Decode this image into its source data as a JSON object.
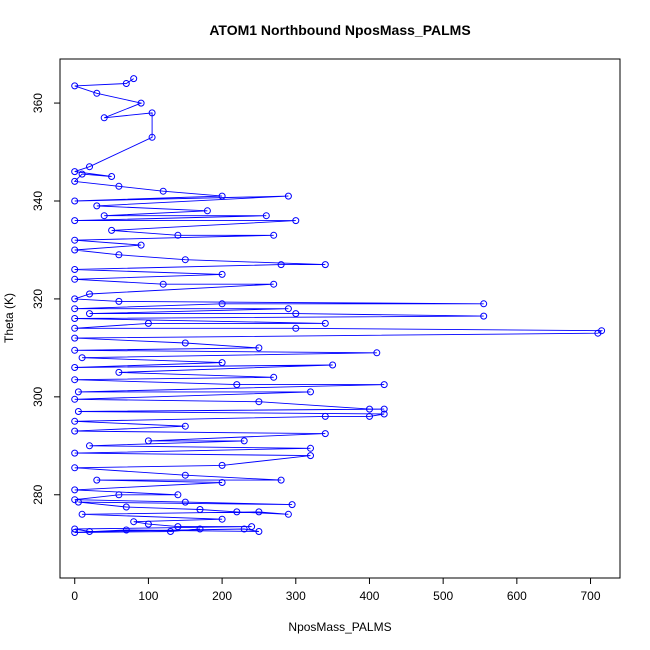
{
  "chart_data": {
    "type": "line",
    "title": "ATOM1 Northbound NposMass_PALMS",
    "xlabel": "NposMass_PALMS",
    "ylabel": "Theta (K)",
    "xlim": [
      -20,
      740
    ],
    "ylim": [
      263,
      369
    ],
    "xticks": [
      0,
      100,
      200,
      300,
      400,
      500,
      600,
      700
    ],
    "yticks": [
      280,
      300,
      320,
      340,
      360
    ],
    "grid": false,
    "legend": "none",
    "marker": "open-circle",
    "color": "#0000ff",
    "series": [
      {
        "values": [
          [
            80,
            365
          ],
          [
            70,
            364
          ],
          [
            0,
            363.5
          ],
          [
            30,
            362
          ],
          [
            90,
            360
          ],
          [
            40,
            357
          ],
          [
            105,
            358
          ],
          [
            105,
            353
          ],
          [
            20,
            347
          ],
          [
            0,
            346
          ],
          [
            50,
            345
          ],
          [
            10,
            345.5
          ],
          [
            0,
            344
          ],
          [
            60,
            343
          ],
          [
            120,
            342
          ],
          [
            200,
            341
          ],
          [
            0,
            340
          ],
          [
            290,
            341
          ],
          [
            30,
            339
          ],
          [
            180,
            338
          ],
          [
            40,
            337
          ],
          [
            260,
            337
          ],
          [
            0,
            336
          ],
          [
            300,
            336
          ],
          [
            50,
            334
          ],
          [
            140,
            333
          ],
          [
            270,
            333
          ],
          [
            0,
            332
          ],
          [
            90,
            331
          ],
          [
            0,
            330
          ],
          [
            60,
            329
          ],
          [
            150,
            328
          ],
          [
            340,
            327
          ],
          [
            280,
            327
          ],
          [
            0,
            326
          ],
          [
            200,
            325
          ],
          [
            0,
            324
          ],
          [
            120,
            323
          ],
          [
            270,
            323
          ],
          [
            20,
            321
          ],
          [
            0,
            320
          ],
          [
            60,
            319.5
          ],
          [
            555,
            319
          ],
          [
            200,
            319
          ],
          [
            0,
            318
          ],
          [
            290,
            318
          ],
          [
            20,
            317
          ],
          [
            300,
            317
          ],
          [
            555,
            316.5
          ],
          [
            0,
            316
          ],
          [
            340,
            315
          ],
          [
            100,
            315
          ],
          [
            0,
            314
          ],
          [
            300,
            314
          ],
          [
            715,
            313.5
          ],
          [
            710,
            313
          ],
          [
            0,
            312
          ],
          [
            150,
            311
          ],
          [
            250,
            310
          ],
          [
            0,
            309.5
          ],
          [
            410,
            309
          ],
          [
            10,
            308
          ],
          [
            200,
            307
          ],
          [
            0,
            306
          ],
          [
            350,
            306.5
          ],
          [
            60,
            305
          ],
          [
            270,
            304
          ],
          [
            0,
            303.5
          ],
          [
            220,
            302.5
          ],
          [
            420,
            302.5
          ],
          [
            5,
            301
          ],
          [
            320,
            301
          ],
          [
            0,
            299.5
          ],
          [
            250,
            299
          ],
          [
            400,
            297.5
          ],
          [
            420,
            297.5
          ],
          [
            5,
            297
          ],
          [
            420,
            296.5
          ],
          [
            400,
            296
          ],
          [
            340,
            296
          ],
          [
            0,
            295
          ],
          [
            150,
            294
          ],
          [
            0,
            293
          ],
          [
            340,
            292.5
          ],
          [
            100,
            291
          ],
          [
            230,
            291
          ],
          [
            20,
            290
          ],
          [
            320,
            289.5
          ],
          [
            0,
            288.5
          ],
          [
            320,
            288
          ],
          [
            200,
            286
          ],
          [
            0,
            285.5
          ],
          [
            150,
            284
          ],
          [
            280,
            283
          ],
          [
            30,
            283
          ],
          [
            200,
            282.5
          ],
          [
            0,
            281
          ],
          [
            140,
            280
          ],
          [
            60,
            280
          ],
          [
            0,
            279
          ],
          [
            150,
            278.5
          ],
          [
            295,
            278
          ],
          [
            5,
            278.5
          ],
          [
            70,
            277.5
          ],
          [
            170,
            277
          ],
          [
            220,
            276.5
          ],
          [
            290,
            276
          ],
          [
            250,
            276.5
          ],
          [
            10,
            276
          ],
          [
            200,
            275
          ],
          [
            80,
            274.5
          ],
          [
            100,
            274
          ],
          [
            140,
            273.5
          ],
          [
            240,
            273.5
          ],
          [
            0,
            273
          ],
          [
            20,
            272.5
          ],
          [
            230,
            273
          ],
          [
            250,
            272.5
          ],
          [
            70,
            272.8
          ],
          [
            0,
            272.3
          ],
          [
            130,
            272.5
          ],
          [
            170,
            273
          ]
        ]
      }
    ]
  }
}
